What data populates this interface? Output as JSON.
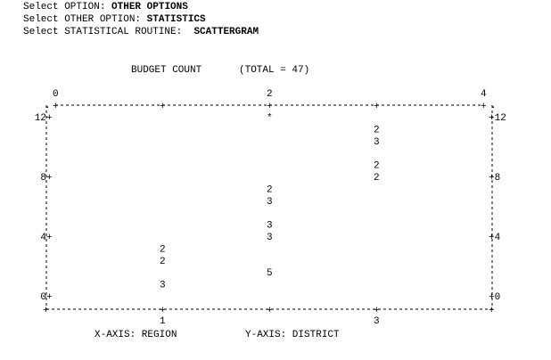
{
  "prompts": [
    {
      "label": "Select OPTION: ",
      "value": "OTHER OPTIONS"
    },
    {
      "label": "Select OTHER OPTION: ",
      "value": "STATISTICS"
    },
    {
      "label": "Select STATISTICAL ROUTINE:  ",
      "value": "SCATTERGRAM"
    }
  ],
  "chart_data": {
    "type": "scatter",
    "title": "BUDGET COUNT",
    "total_label": "(TOTAL = 47)",
    "xlabel": "X-AXIS:  REGION",
    "ylabel": "Y-AXIS:  DISTRICT",
    "xlim": [
      0,
      4
    ],
    "ylim": [
      0,
      12
    ],
    "top_ticks": [
      0,
      2,
      4
    ],
    "bottom_ticks": [
      1,
      3
    ],
    "y_ticks": [
      12,
      8,
      4,
      0
    ],
    "left_tick_labels": [
      "12+",
      "8+",
      "4+",
      "0+"
    ],
    "right_tick_labels": [
      "+12",
      "+8",
      "+4",
      "+0"
    ],
    "points": [
      {
        "x": 2,
        "y": 12,
        "count": "*"
      },
      {
        "x": 3,
        "y": 11.2,
        "count": "2"
      },
      {
        "x": 3,
        "y": 10.4,
        "count": "3"
      },
      {
        "x": 3,
        "y": 8.8,
        "count": "2"
      },
      {
        "x": 3,
        "y": 8.0,
        "count": "2"
      },
      {
        "x": 2,
        "y": 7.2,
        "count": "2"
      },
      {
        "x": 2,
        "y": 6.4,
        "count": "3"
      },
      {
        "x": 2,
        "y": 4.8,
        "count": "3"
      },
      {
        "x": 2,
        "y": 4.0,
        "count": "3"
      },
      {
        "x": 1,
        "y": 3.2,
        "count": "2"
      },
      {
        "x": 1,
        "y": 2.4,
        "count": "2"
      },
      {
        "x": 2,
        "y": 1.6,
        "count": "5"
      },
      {
        "x": 1,
        "y": 0.8,
        "count": "3"
      }
    ]
  }
}
